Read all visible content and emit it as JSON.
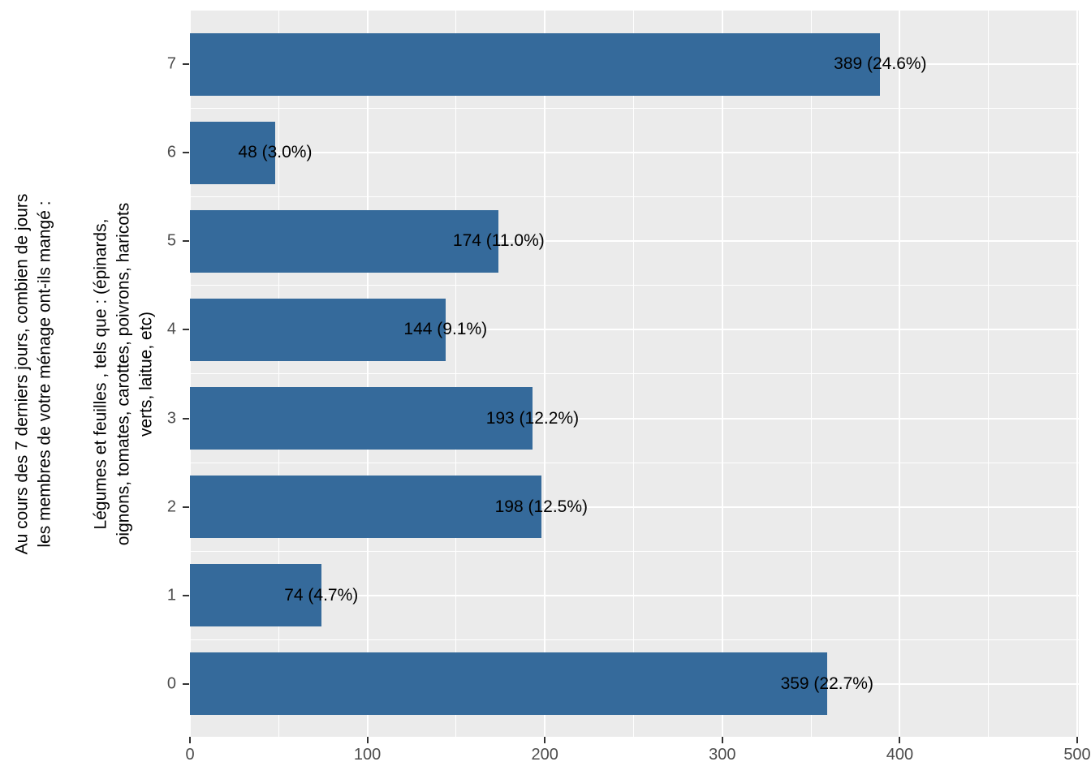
{
  "chart_data": {
    "type": "bar",
    "orientation": "horizontal",
    "title": "",
    "xlabel": "",
    "ylabel_lines": [
      "Au cours des 7 derniers jours, combien de jours",
      "les membres de votre ménage ont-ils mangé :",
      "Légumes et feuilles , tels que : (épinards,",
      "oignons, tomates, carottes, poivrons, haricots",
      "verts, laitue, etc)"
    ],
    "categories": [
      "7",
      "6",
      "5",
      "4",
      "3",
      "2",
      "1",
      "0"
    ],
    "values": [
      389,
      48,
      174,
      144,
      193,
      198,
      74,
      359
    ],
    "percentages": [
      24.6,
      3.0,
      11.0,
      9.1,
      12.2,
      12.5,
      4.7,
      22.7
    ],
    "bar_labels": [
      "389 (24.6%)",
      "48 (3.0%)",
      "174 (11.0%)",
      "144 (9.1%)",
      "193 (12.2%)",
      "198 (12.5%)",
      "74 (4.7%)",
      "359 (22.7%)"
    ],
    "x_ticks": [
      0,
      100,
      200,
      300,
      400,
      500
    ],
    "x_minor_ticks": [
      50,
      150,
      250,
      350,
      450
    ],
    "xlim": [
      0,
      500
    ],
    "grid": true,
    "legend_position": "none",
    "colors": {
      "bar": "#356a9b",
      "panel_bg": "#ebebeb",
      "gridline": "#ffffff",
      "axis_text": "#4d4d4d",
      "label_text": "#000000",
      "tick_mark": "#333333"
    }
  }
}
